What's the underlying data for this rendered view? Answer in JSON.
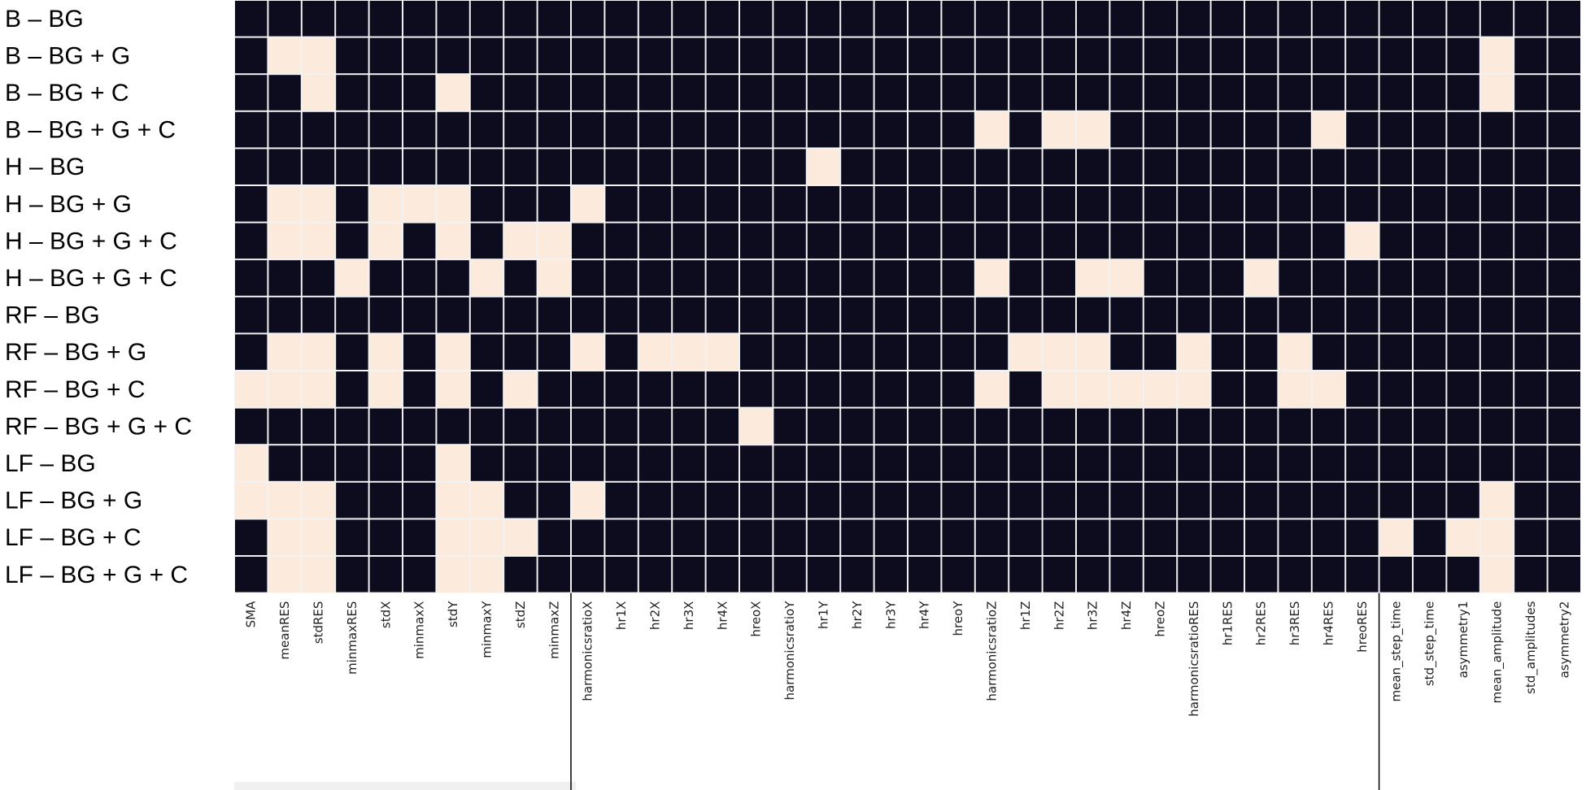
{
  "chart_data": {
    "type": "heatmap",
    "colors": {
      "on": "#fcebdc",
      "off": "#0d0b1e",
      "grid": "#f2f2f2"
    },
    "rows": [
      "B – BG",
      "B – BG + G",
      "B – BG + C",
      "B – BG + G + C",
      "H – BG",
      "H – BG + G",
      "H – BG + G + C",
      "H – BG + G + C",
      "RF – BG",
      "RF – BG + G",
      "RF – BG + C",
      "RF – BG + G + C",
      "LF – BG",
      "LF – BG + G",
      "LF – BG + C",
      "LF – BG + G + C"
    ],
    "columns": [
      "SMA",
      "meanRES",
      "stdRES",
      "minmaxRES",
      "stdX",
      "minmaxX",
      "stdY",
      "minmaxY",
      "stdZ",
      "minmaxZ",
      "harmonicsratioX",
      "hr1X",
      "hr2X",
      "hr3X",
      "hr4X",
      "hreoX",
      "harmonicsratioY",
      "hr1Y",
      "hr2Y",
      "hr3Y",
      "hr4Y",
      "hreoY",
      "harmonicsratioZ",
      "hr1Z",
      "hr2Z",
      "hr3Z",
      "hr4Z",
      "hreoZ",
      "harmonicsratioRES",
      "hr1RES",
      "hr2RES",
      "hr3RES",
      "hr4RES",
      "hreoRES",
      "mean_step_time",
      "std_step_time",
      "asymmetry1",
      "mean_amplitude",
      "std_amplitudes",
      "asymmetry2"
    ],
    "values": [
      [
        0,
        0,
        0,
        0,
        0,
        0,
        0,
        0,
        0,
        0,
        0,
        0,
        0,
        0,
        0,
        0,
        0,
        0,
        0,
        0,
        0,
        0,
        0,
        0,
        0,
        0,
        0,
        0,
        0,
        0,
        0,
        0,
        0,
        0,
        0,
        0,
        0,
        0,
        0,
        0
      ],
      [
        0,
        1,
        1,
        0,
        0,
        0,
        0,
        0,
        0,
        0,
        0,
        0,
        0,
        0,
        0,
        0,
        0,
        0,
        0,
        0,
        0,
        0,
        0,
        0,
        0,
        0,
        0,
        0,
        0,
        0,
        0,
        0,
        0,
        0,
        0,
        0,
        0,
        1,
        0,
        0
      ],
      [
        0,
        0,
        1,
        0,
        0,
        0,
        1,
        0,
        0,
        0,
        0,
        0,
        0,
        0,
        0,
        0,
        0,
        0,
        0,
        0,
        0,
        0,
        0,
        0,
        0,
        0,
        0,
        0,
        0,
        0,
        0,
        0,
        0,
        0,
        0,
        0,
        0,
        1,
        0,
        0
      ],
      [
        0,
        0,
        0,
        0,
        0,
        0,
        0,
        0,
        0,
        0,
        0,
        0,
        0,
        0,
        0,
        0,
        0,
        0,
        0,
        0,
        0,
        0,
        1,
        0,
        1,
        1,
        0,
        0,
        0,
        0,
        0,
        0,
        1,
        0,
        0,
        0,
        0,
        0,
        0,
        0
      ],
      [
        0,
        0,
        0,
        0,
        0,
        0,
        0,
        0,
        0,
        0,
        0,
        0,
        0,
        0,
        0,
        0,
        0,
        1,
        0,
        0,
        0,
        0,
        0,
        0,
        0,
        0,
        0,
        0,
        0,
        0,
        0,
        0,
        0,
        0,
        0,
        0,
        0,
        0,
        0,
        0
      ],
      [
        0,
        1,
        1,
        0,
        1,
        1,
        1,
        0,
        0,
        0,
        1,
        0,
        0,
        0,
        0,
        0,
        0,
        0,
        0,
        0,
        0,
        0,
        0,
        0,
        0,
        0,
        0,
        0,
        0,
        0,
        0,
        0,
        0,
        0,
        0,
        0,
        0,
        0,
        0,
        0
      ],
      [
        0,
        1,
        1,
        0,
        1,
        0,
        1,
        0,
        1,
        1,
        0,
        0,
        0,
        0,
        0,
        0,
        0,
        0,
        0,
        0,
        0,
        0,
        0,
        0,
        0,
        0,
        0,
        0,
        0,
        0,
        0,
        0,
        0,
        1,
        0,
        0,
        0,
        0,
        0,
        0
      ],
      [
        0,
        0,
        0,
        1,
        0,
        0,
        0,
        1,
        0,
        1,
        0,
        0,
        0,
        0,
        0,
        0,
        0,
        0,
        0,
        0,
        0,
        0,
        1,
        0,
        0,
        1,
        1,
        0,
        0,
        0,
        1,
        0,
        0,
        0,
        0,
        0,
        0,
        0,
        0,
        0
      ],
      [
        0,
        0,
        0,
        0,
        0,
        0,
        0,
        0,
        0,
        0,
        0,
        0,
        0,
        0,
        0,
        0,
        0,
        0,
        0,
        0,
        0,
        0,
        0,
        0,
        0,
        0,
        0,
        0,
        0,
        0,
        0,
        0,
        0,
        0,
        0,
        0,
        0,
        0,
        0,
        0
      ],
      [
        0,
        1,
        1,
        0,
        1,
        0,
        1,
        0,
        0,
        0,
        1,
        0,
        1,
        1,
        1,
        0,
        0,
        0,
        0,
        0,
        0,
        0,
        0,
        1,
        1,
        1,
        0,
        0,
        1,
        0,
        0,
        1,
        0,
        0,
        0,
        0,
        0,
        0,
        0,
        0
      ],
      [
        1,
        1,
        1,
        0,
        1,
        0,
        1,
        0,
        1,
        0,
        0,
        0,
        0,
        0,
        0,
        0,
        0,
        0,
        0,
        0,
        0,
        0,
        1,
        0,
        1,
        1,
        1,
        1,
        1,
        0,
        0,
        1,
        1,
        0,
        0,
        0,
        0,
        0,
        0,
        0
      ],
      [
        0,
        0,
        0,
        0,
        0,
        0,
        0,
        0,
        0,
        0,
        0,
        0,
        0,
        0,
        0,
        1,
        0,
        0,
        0,
        0,
        0,
        0,
        0,
        0,
        0,
        0,
        0,
        0,
        0,
        0,
        0,
        0,
        0,
        0,
        0,
        0,
        0,
        0,
        0,
        0
      ],
      [
        1,
        0,
        0,
        0,
        0,
        0,
        1,
        0,
        0,
        0,
        0,
        0,
        0,
        0,
        0,
        0,
        0,
        0,
        0,
        0,
        0,
        0,
        0,
        0,
        0,
        0,
        0,
        0,
        0,
        0,
        0,
        0,
        0,
        0,
        0,
        0,
        0,
        0,
        0,
        0
      ],
      [
        1,
        1,
        1,
        0,
        0,
        0,
        1,
        1,
        0,
        0,
        1,
        0,
        0,
        0,
        0,
        0,
        0,
        0,
        0,
        0,
        0,
        0,
        0,
        0,
        0,
        0,
        0,
        0,
        0,
        0,
        0,
        0,
        0,
        0,
        0,
        0,
        0,
        1,
        0,
        0
      ],
      [
        0,
        1,
        1,
        0,
        0,
        0,
        1,
        1,
        1,
        0,
        0,
        0,
        0,
        0,
        0,
        0,
        0,
        0,
        0,
        0,
        0,
        0,
        0,
        0,
        0,
        0,
        0,
        0,
        0,
        0,
        0,
        0,
        0,
        0,
        1,
        0,
        1,
        1,
        0,
        0
      ],
      [
        0,
        1,
        1,
        0,
        0,
        0,
        1,
        1,
        0,
        0,
        0,
        0,
        0,
        0,
        0,
        0,
        0,
        0,
        0,
        0,
        0,
        0,
        0,
        0,
        0,
        0,
        0,
        0,
        0,
        0,
        0,
        0,
        0,
        0,
        0,
        0,
        0,
        1,
        0,
        0
      ]
    ],
    "group_separators_after_column": [
      9,
      33
    ],
    "grid": true,
    "legend": "none"
  }
}
